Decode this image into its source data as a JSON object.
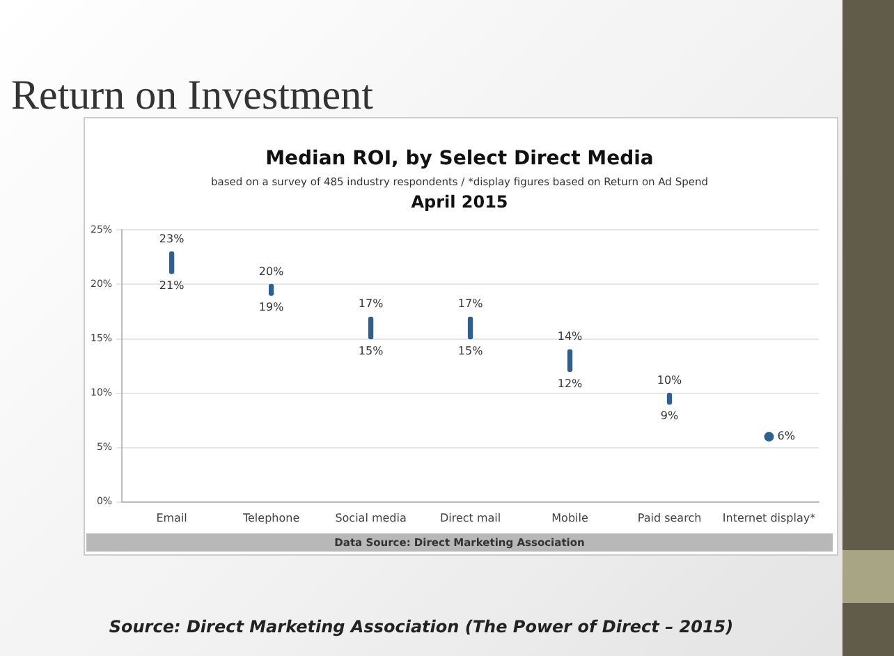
{
  "chart_data": {
    "type": "bar",
    "title": "Return on Investment",
    "subtitle": "Median ROI, by Select Direct Media",
    "categories": [
      "Email",
      "Telephone",
      "Social media",
      "Direct mail",
      "Mobile",
      "Paid search",
      "Internet display*"
    ],
    "series": [
      {
        "type": "bar",
        "color": "#2f5f8f",
        "base": [
          21,
          19,
          15,
          15,
          12,
          9,
          null
        ],
        "values": [
          2,
          1,
          2,
          2,
          2,
          1,
          null
        ]
      },
      {
        "type": "scatter",
        "color": "#2f5f8f",
        "x": [
          "Internet display*"
        ],
        "values": [
          6
        ]
      }
    ],
    "marker": "circle",
    "ylim": [
      0,
      25
    ],
    "yticks": [
      {
        "value": 0,
        "label": "0%"
      },
      {
        "value": 5,
        "label": "5%"
      },
      {
        "value": 10,
        "label": "10%"
      },
      {
        "value": 15,
        "label": "15%"
      },
      {
        "value": 20,
        "label": "20%"
      },
      {
        "value": 25,
        "label": "25%"
      }
    ],
    "grid": "y",
    "legend": false,
    "annotations": [
      "based on a survey of 485 industry respondents / *display figures based on Return on Ad Spend",
      "April 2015",
      "Data Source: Direct Marketing Association",
      "Source:  Direct Marketing Association (The Power of Direct – 2015)",
      {
        "text": "23%",
        "x": "Email",
        "y": 23
      },
      {
        "text": "21%",
        "x": "Email",
        "y": 21
      },
      {
        "text": "20%",
        "x": "Telephone",
        "y": 20
      },
      {
        "text": "19%",
        "x": "Telephone",
        "y": 19
      },
      {
        "text": "17%",
        "x": "Social media",
        "y": 17
      },
      {
        "text": "15%",
        "x": "Social media",
        "y": 15
      },
      {
        "text": "17%",
        "x": "Direct mail",
        "y": 17
      },
      {
        "text": "15%",
        "x": "Direct mail",
        "y": 15
      },
      {
        "text": "14%",
        "x": "Mobile",
        "y": 14
      },
      {
        "text": "12%",
        "x": "Mobile",
        "y": 12
      },
      {
        "text": "10%",
        "x": "Paid search",
        "y": 10
      },
      {
        "text": "9%",
        "x": "Paid search",
        "y": 9
      },
      {
        "text": "6%",
        "x": "Internet display*",
        "y": 6
      }
    ]
  }
}
